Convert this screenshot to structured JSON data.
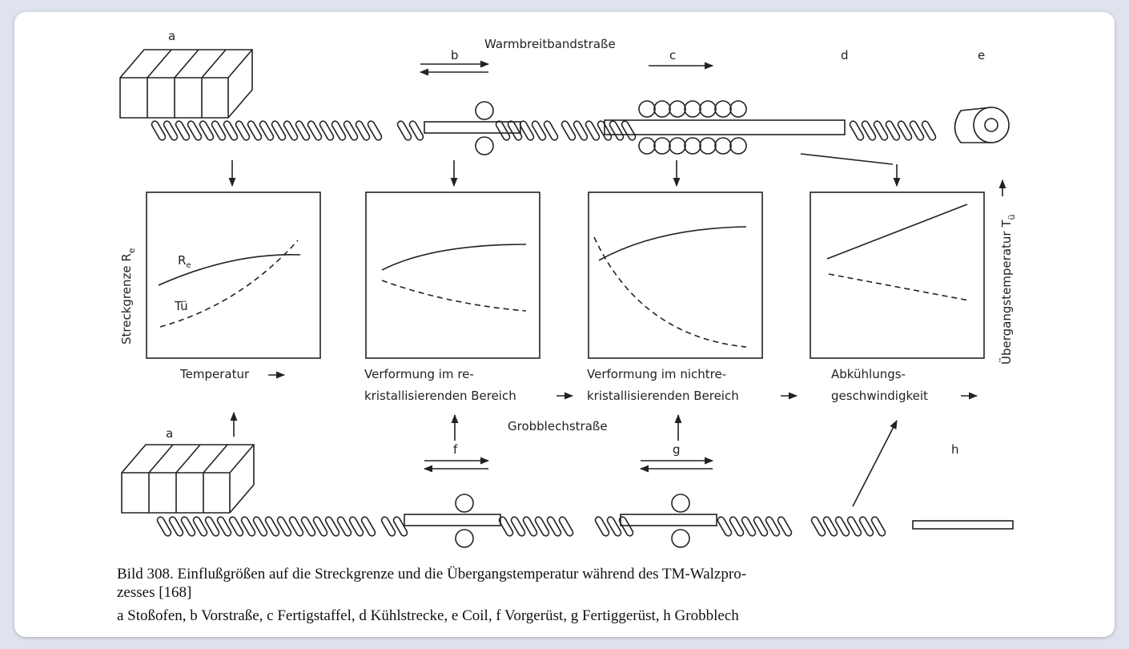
{
  "top_line": {
    "title": "Warmbreitbandstraße",
    "stations": [
      "a",
      "b",
      "c",
      "d",
      "e"
    ]
  },
  "bottom_line": {
    "title": "Grobblechstraße",
    "stations": [
      "a",
      "f",
      "g",
      "h"
    ]
  },
  "y_axis_left": {
    "label": "Streckgrenze R",
    "subscript": "e"
  },
  "y_axis_right": {
    "label": "Übergangstemperatur T",
    "subscript": "ü"
  },
  "panels": [
    {
      "x_label": [
        "Temperatur"
      ],
      "curve_labels": [
        {
          "text": "R",
          "sub": "e"
        },
        {
          "text": "Tü"
        }
      ]
    },
    {
      "x_label": [
        "Verformung im re-",
        "kristallisierenden Bereich"
      ]
    },
    {
      "x_label": [
        "Verformung im nichtre-",
        "kristallisierenden Bereich"
      ]
    },
    {
      "x_label": [
        "Abkühlungs-",
        "geschwindigkeit"
      ]
    }
  ],
  "caption": {
    "lines": [
      "Bild 308. Einflußgrößen auf die Streckgrenze und die Übergangstemperatur während des TM-Walzpro-",
      "zesses [168]",
      "a Stoßofen, b Vorstraße, c Fertigstaffel, d Kühlstrecke, e Coil, f Vorgerüst, g Fertiggerüst, h Grobblech"
    ]
  }
}
